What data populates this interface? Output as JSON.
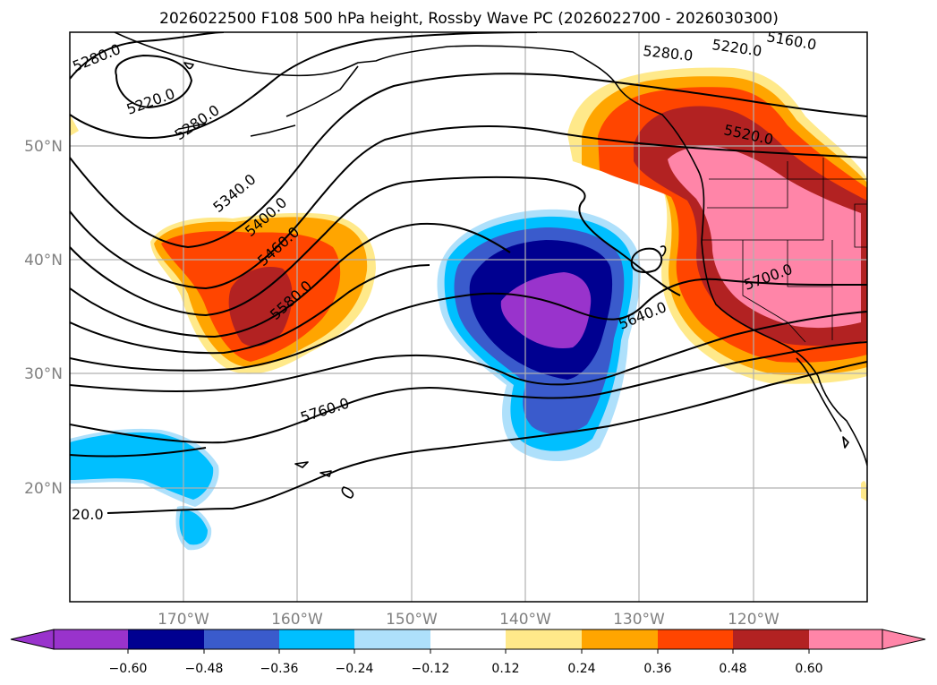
{
  "title": "2026022500 F108 500 hPa height, Rossby Wave PC (2026022700 - 2026030300)",
  "lat_labels": [
    {
      "label": "50°N",
      "lat": 50
    },
    {
      "label": "40°N",
      "lat": 40
    },
    {
      "label": "30°N",
      "lat": 30
    },
    {
      "label": "20°N",
      "lat": 20
    }
  ],
  "lon_labels": [
    {
      "label": "170°W",
      "lon": -170
    },
    {
      "label": "160°W",
      "lon": -160
    },
    {
      "label": "150°W",
      "lon": -150
    },
    {
      "label": "140°W",
      "lon": -140
    },
    {
      "label": "130°W",
      "lon": -130
    },
    {
      "label": "120°W",
      "lon": -120
    }
  ],
  "map_extent": {
    "lon_min": -180,
    "lon_max": -110,
    "lat_min": 10,
    "lat_max": 60
  },
  "contour_labels": [
    "5280.0",
    "5220.0",
    "5280.0",
    "5340.0",
    "5400.0",
    "5460.0",
    "5580.0",
    "5760.0",
    "20.0",
    "5280.0",
    "5220.0",
    "5160.0",
    "5520.0",
    "5700.0",
    "5640.0"
  ],
  "colorbar": {
    "levels": [
      "−0.60",
      "−0.48",
      "−0.36",
      "−0.24",
      "−0.12",
      "0.12",
      "0.24",
      "0.36",
      "0.48",
      "0.60"
    ],
    "colors": [
      "#9933cc",
      "#000090",
      "#3a5bcc",
      "#00bfff",
      "#aee0fb",
      "#ffffff",
      "#ffe98a",
      "#ffa500",
      "#ff4500",
      "#b22222",
      "#ff85a8"
    ],
    "extend": "both"
  },
  "field_colors": {
    "neg_strong": "#9933cc",
    "neg_2": "#000090",
    "neg_3": "#3a5bcc",
    "neg_4": "#00bfff",
    "neg_5": "#aee0fb",
    "pos_1": "#ffe98a",
    "pos_2": "#ffa500",
    "pos_3": "#ff4500",
    "pos_4": "#b22222",
    "pos_5": "#ff85a8"
  }
}
